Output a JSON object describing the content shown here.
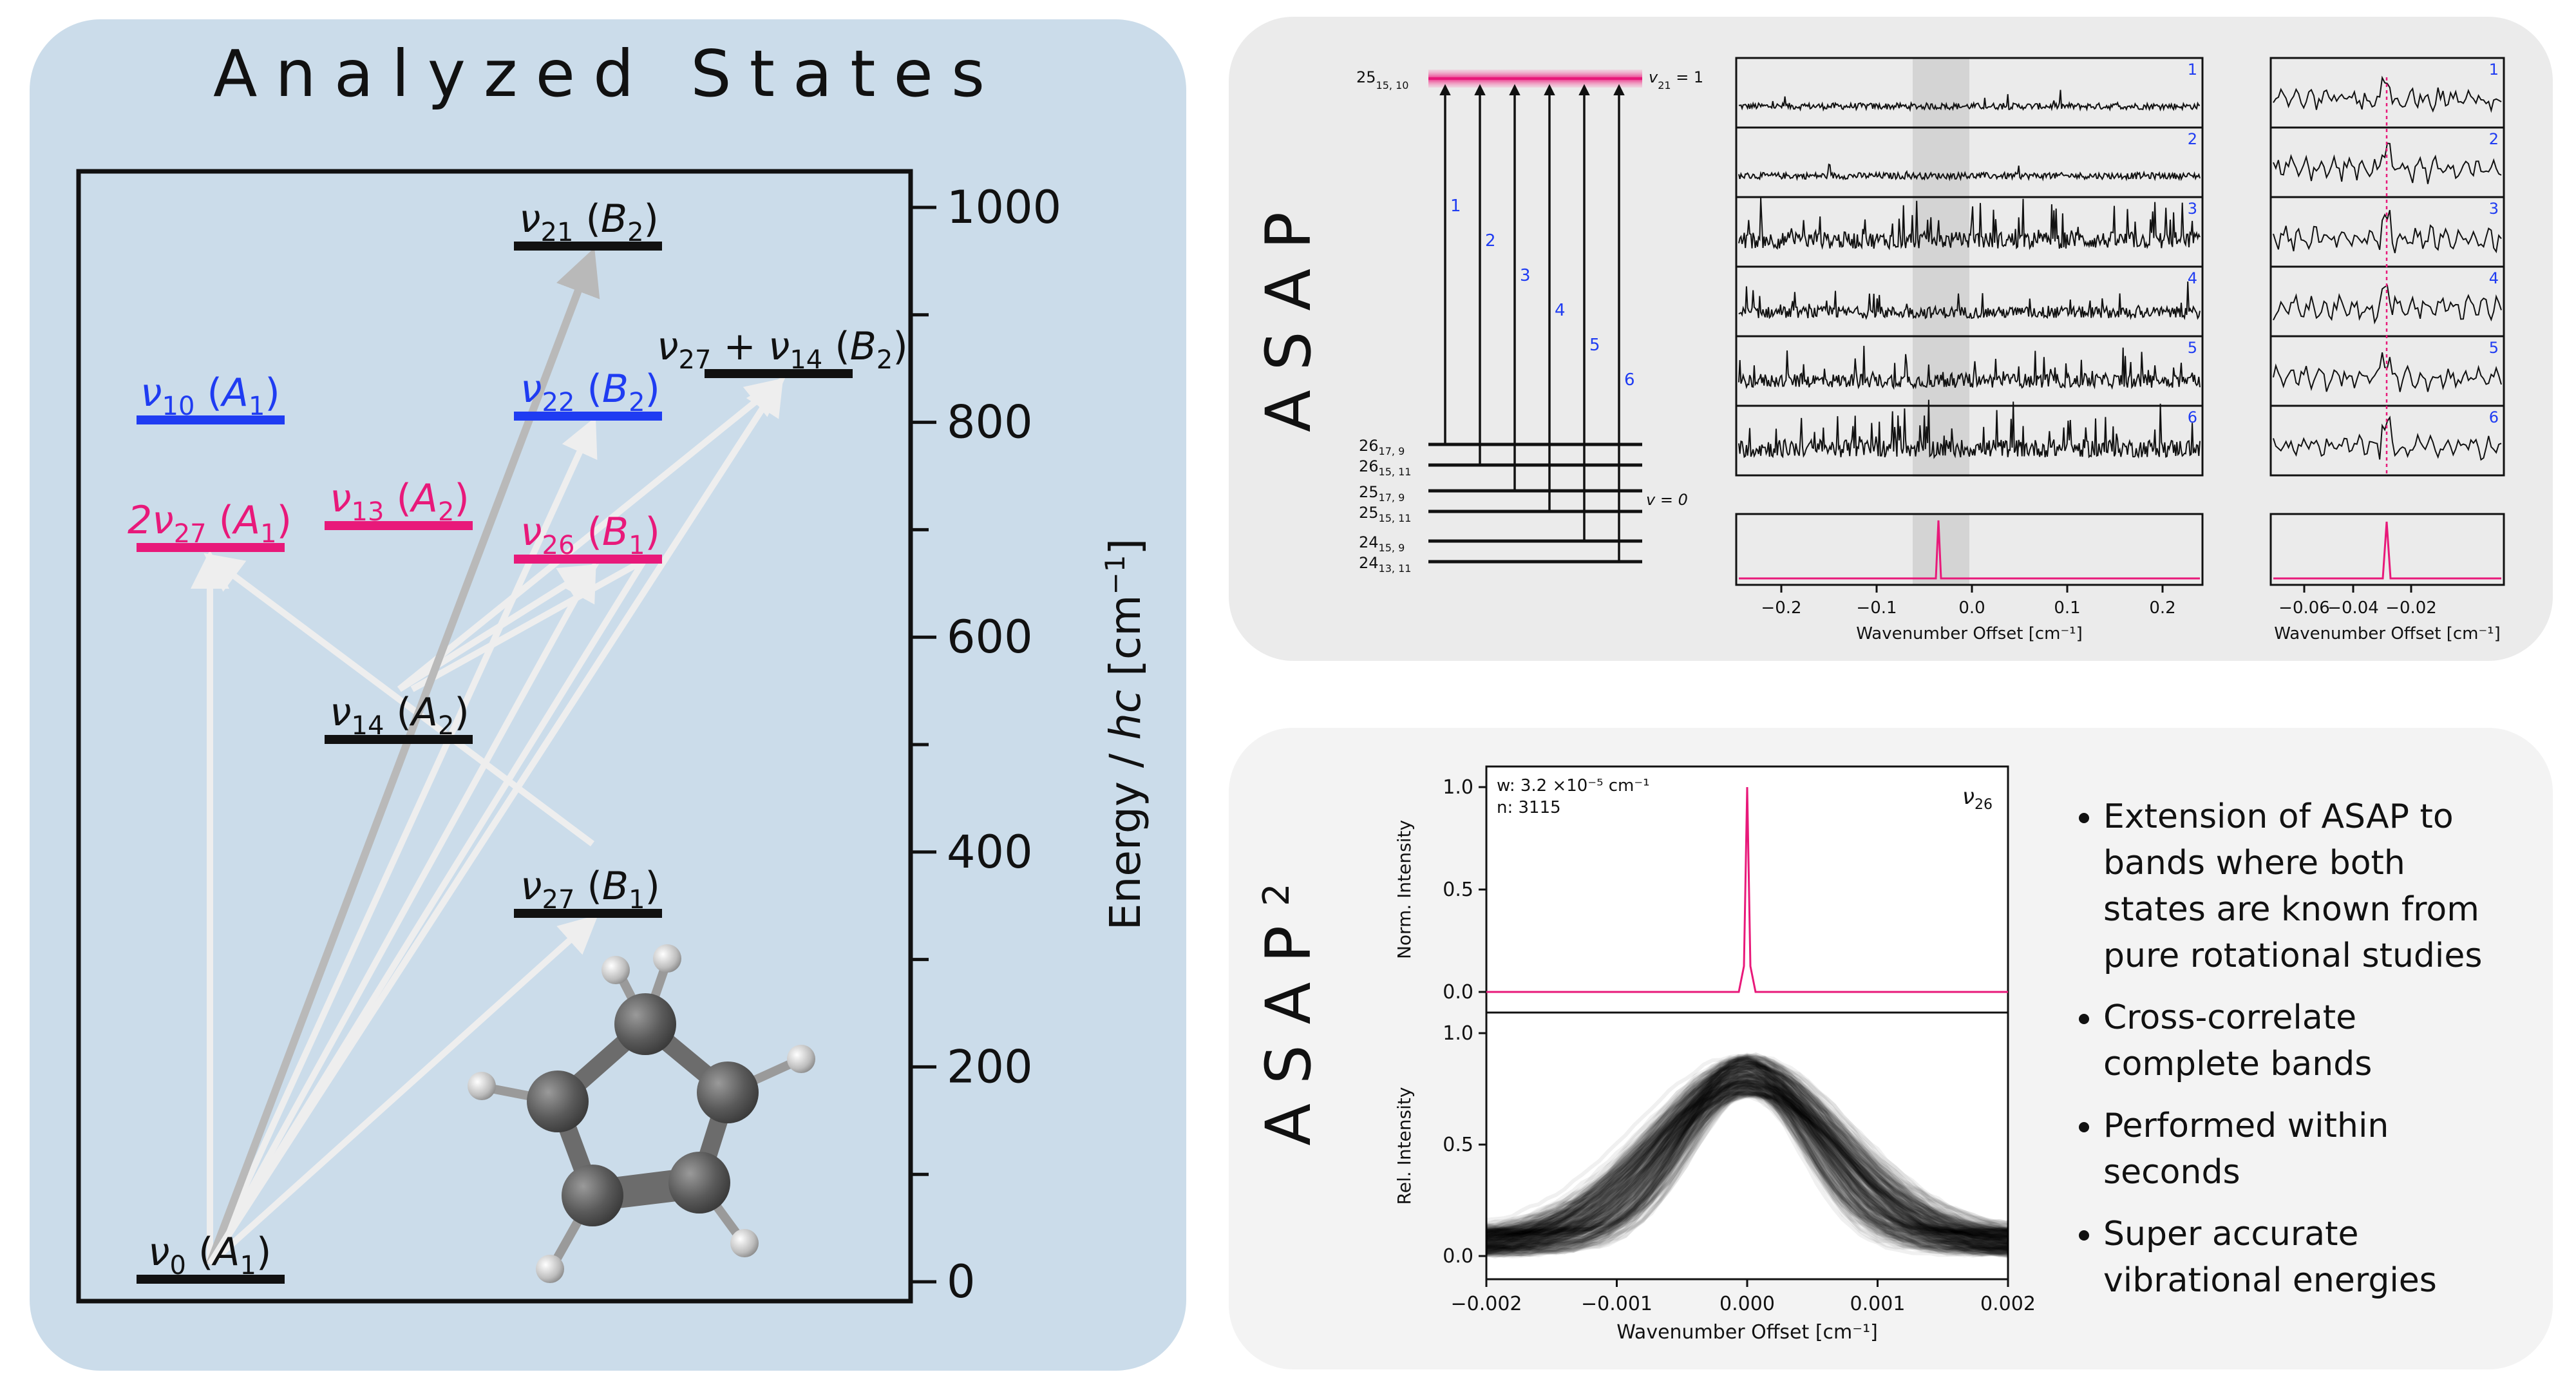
{
  "left": {
    "title": "Analyzed States",
    "axis_label": "Energy / hc [cm⁻¹]",
    "ticks": [
      0,
      200,
      400,
      600,
      800,
      1000
    ],
    "levels": [
      {
        "id": "v0",
        "base": "ν",
        "sub": "0",
        "sym": "A",
        "symsub": "1",
        "energy": 0,
        "color": "#111111"
      },
      {
        "id": "v27",
        "base": "ν",
        "sub": "27",
        "sym": "B",
        "symsub": "1",
        "energy": 340,
        "color": "#111111"
      },
      {
        "id": "v14",
        "base": "ν",
        "sub": "14",
        "sym": "A",
        "symsub": "2",
        "energy": 500,
        "color": "#111111"
      },
      {
        "id": "v26",
        "base": "ν",
        "sub": "26",
        "sym": "B",
        "symsub": "1",
        "energy": 670,
        "color": "#e8197a"
      },
      {
        "id": "v13",
        "base": "ν",
        "sub": "13",
        "sym": "A",
        "symsub": "2",
        "energy": 700,
        "color": "#e8197a"
      },
      {
        "id": "2v27",
        "base": "2ν",
        "sub": "27",
        "sym": "A",
        "symsub": "1",
        "energy": 680,
        "color": "#e8197a"
      },
      {
        "id": "v10",
        "base": "ν",
        "sub": "10",
        "sym": "A",
        "symsub": "1",
        "energy": 800,
        "color": "#1f3cf2"
      },
      {
        "id": "v22",
        "base": "ν",
        "sub": "22",
        "sym": "B",
        "symsub": "2",
        "energy": 805,
        "color": "#1f3cf2"
      },
      {
        "id": "v27v14",
        "base": "ν",
        "sub": "27",
        "extra": "+ ν",
        "extrasub": "14",
        "sym": "B",
        "symsub": "2",
        "energy": 840,
        "color": "#111111"
      },
      {
        "id": "v21",
        "base": "ν",
        "sub": "21",
        "sym": "B",
        "symsub": "2",
        "energy": 965,
        "color": "#111111"
      }
    ]
  },
  "asap": {
    "label": "ASAP",
    "upper_level": {
      "text": "25",
      "sub": "15, 10"
    },
    "upper_state": {
      "text": "v",
      "sub": "21",
      "eq": " = 1"
    },
    "lower_state": {
      "text": "v = 0"
    },
    "lower_levels": [
      {
        "text": "26",
        "sub": "17, 9"
      },
      {
        "text": "26",
        "sub": "15, 11"
      },
      {
        "text": "25",
        "sub": "17, 9"
      },
      {
        "text": "25",
        "sub": "15, 11"
      },
      {
        "text": "24",
        "sub": "15, 9"
      },
      {
        "text": "24",
        "sub": "13, 11"
      }
    ],
    "transition_labels": [
      "1",
      "2",
      "3",
      "4",
      "5",
      "6"
    ],
    "spectrum_numbers": [
      "1",
      "2",
      "3",
      "4",
      "5",
      "6"
    ],
    "main_xticks": [
      "−0.2",
      "−0.1",
      "0.0",
      "0.1",
      "0.2"
    ],
    "zoom_xticks": [
      "−0.06",
      "−0.04",
      "−0.02"
    ],
    "xlabel": "Wavenumber Offset [cm⁻¹]"
  },
  "asap2": {
    "label": "ASAP²",
    "label_base": "ASAP",
    "label_sup": "2",
    "annot_w": "w: 3.2 ×10⁻⁵ cm⁻¹",
    "annot_n": "n: 3115",
    "band": {
      "base": "ν",
      "sub": "26"
    },
    "top_ylabel": "Norm. Intensity",
    "bottom_ylabel": "Rel. Intensity",
    "top_yticks": [
      "0.0",
      "0.5",
      "1.0"
    ],
    "bottom_yticks": [
      "0.0",
      "0.5",
      "1.0"
    ],
    "xticks": [
      "−0.002",
      "−0.001",
      "0.000",
      "0.001",
      "0.002"
    ],
    "xlabel": "Wavenumber Offset [cm⁻¹]"
  },
  "bullets": [
    [
      "Extension of ASAP to",
      "bands where both",
      "states are known from",
      "pure rotational studies"
    ],
    [
      "Cross-correlate",
      "complete bands"
    ],
    [
      "Performed within",
      "seconds"
    ],
    [
      "Super accurate",
      "vibrational energies"
    ]
  ],
  "colors": {
    "pink": "#e8197a",
    "blue": "#1f3cf2",
    "panel_blue": "#cbdcea",
    "panel_grey": "#ebebeb"
  }
}
